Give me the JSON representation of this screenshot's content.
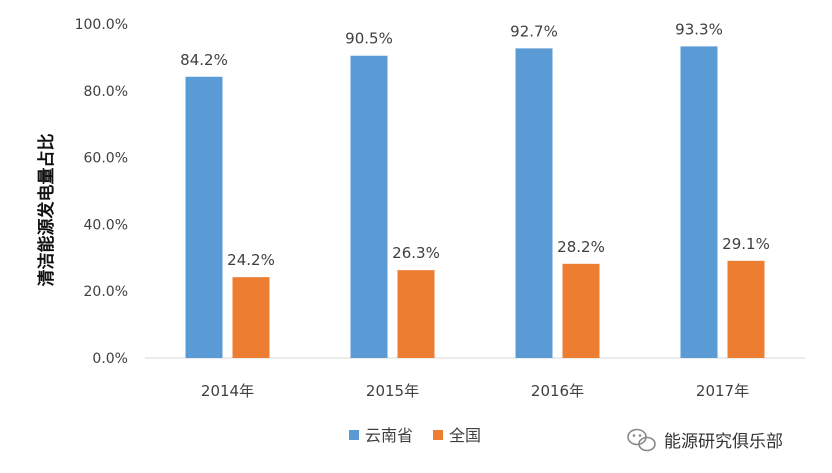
{
  "chart_data": {
    "type": "bar",
    "categories": [
      "2014年",
      "2015年",
      "2016年",
      "2017年"
    ],
    "series": [
      {
        "name": "云南省",
        "values": [
          84.2,
          90.5,
          92.7,
          93.3
        ],
        "labels": [
          "84.2%",
          "90.5%",
          "92.7%",
          "93.3%"
        ],
        "color": "#5b9bd5"
      },
      {
        "name": "全国",
        "values": [
          24.2,
          26.3,
          28.2,
          29.1
        ],
        "labels": [
          "24.2%",
          "26.3%",
          "28.2%",
          "29.1%"
        ],
        "color": "#ed7d31"
      }
    ],
    "ylabel": "清洁能源发电量占比",
    "ylim": [
      0,
      100
    ],
    "yticks": [
      0,
      20,
      40,
      60,
      80,
      100
    ],
    "ytick_labels": [
      "0.0%",
      "20.0%",
      "40.0%",
      "60.0%",
      "80.0%",
      "100.0%"
    ],
    "grid": false,
    "legend_position": "bottom"
  },
  "watermark": {
    "text": "能源研究俱乐部",
    "icon": "wechat-icon"
  }
}
